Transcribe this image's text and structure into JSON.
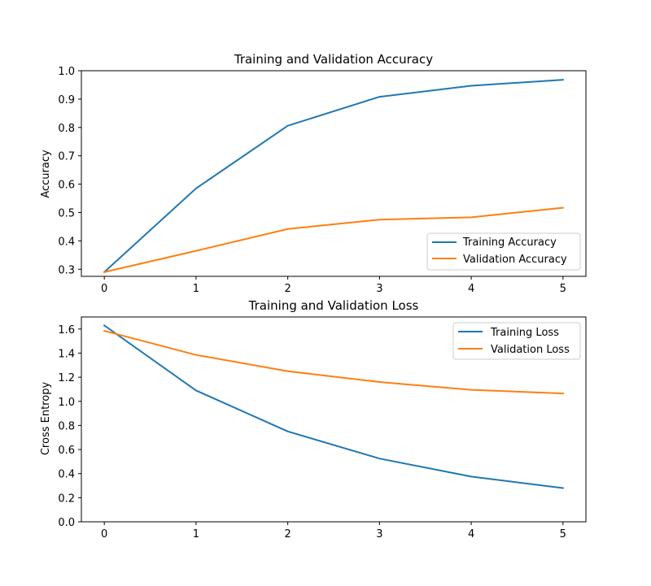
{
  "chart_data": [
    {
      "type": "line",
      "title": "Training and Validation Accuracy",
      "xlabel": "",
      "ylabel": "Accuracy",
      "x": [
        0,
        1,
        2,
        3,
        4,
        5
      ],
      "xticks": [
        "0",
        "1",
        "2",
        "3",
        "4",
        "5"
      ],
      "yticks": [
        "0.3",
        "0.4",
        "0.5",
        "0.6",
        "0.7",
        "0.8",
        "0.9",
        "1.0"
      ],
      "xlim": [
        -0.25,
        5.25
      ],
      "ylim": [
        0.275,
        1.0
      ],
      "grid": false,
      "legend_position": "lower-right",
      "series": [
        {
          "name": "Training Accuracy",
          "color": "#1f77b4",
          "values": [
            0.29,
            0.585,
            0.806,
            0.908,
            0.947,
            0.968
          ]
        },
        {
          "name": "Validation Accuracy",
          "color": "#ff7f0e",
          "values": [
            0.29,
            0.365,
            0.442,
            0.475,
            0.483,
            0.517
          ]
        }
      ]
    },
    {
      "type": "line",
      "title": "Training and Validation Loss",
      "xlabel": "",
      "ylabel": "Cross Entropy",
      "x": [
        0,
        1,
        2,
        3,
        4,
        5
      ],
      "xticks": [
        "0",
        "1",
        "2",
        "3",
        "4",
        "5"
      ],
      "yticks": [
        "0.0",
        "0.2",
        "0.4",
        "0.6",
        "0.8",
        "1.0",
        "1.2",
        "1.4",
        "1.6"
      ],
      "xlim": [
        -0.25,
        5.25
      ],
      "ylim": [
        0.0,
        1.7
      ],
      "grid": false,
      "legend_position": "upper-right",
      "series": [
        {
          "name": "Training Loss",
          "color": "#1f77b4",
          "values": [
            1.63,
            1.09,
            0.75,
            0.525,
            0.375,
            0.28
          ]
        },
        {
          "name": "Validation Loss",
          "color": "#ff7f0e",
          "values": [
            1.585,
            1.385,
            1.25,
            1.16,
            1.095,
            1.065
          ]
        }
      ]
    }
  ]
}
